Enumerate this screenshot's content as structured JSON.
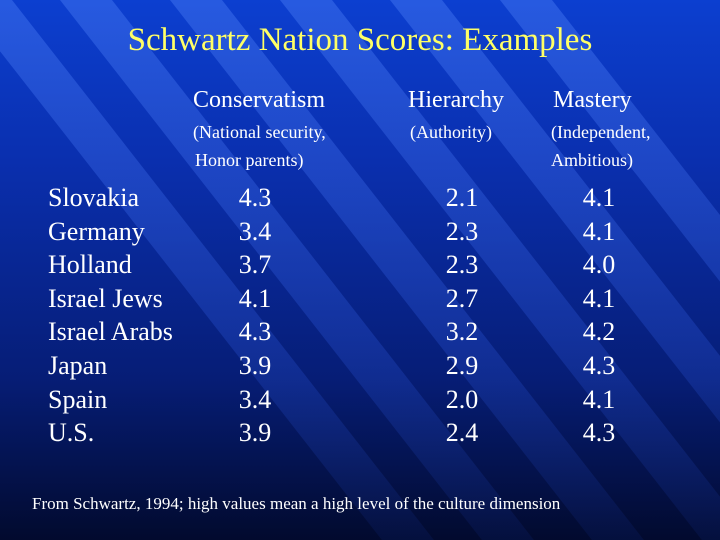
{
  "title": "Schwartz Nation Scores: Examples",
  "columns": [
    {
      "heading": "Conservatism",
      "subtitle_line1": "(National security,",
      "subtitle_line2": "Honor parents)"
    },
    {
      "heading": "Hierarchy",
      "subtitle_line1": "(Authority)",
      "subtitle_line2": ""
    },
    {
      "heading": "Mastery",
      "subtitle_line1": "(Independent,",
      "subtitle_line2": "Ambitious)"
    }
  ],
  "rows": [
    {
      "country": "Slovakia",
      "conservatism": "4.3",
      "hierarchy": "2.1",
      "mastery": "4.1"
    },
    {
      "country": "Germany",
      "conservatism": "3.4",
      "hierarchy": "2.3",
      "mastery": "4.1"
    },
    {
      "country": "Holland",
      "conservatism": "3.7",
      "hierarchy": "2.3",
      "mastery": "4.0"
    },
    {
      "country": "Israel Jews",
      "conservatism": "4.1",
      "hierarchy": "2.7",
      "mastery": "4.1"
    },
    {
      "country": "Israel Arabs",
      "conservatism": "4.3",
      "hierarchy": "3.2",
      "mastery": "4.2"
    },
    {
      "country": "Japan",
      "conservatism": "3.9",
      "hierarchy": "2.9",
      "mastery": "4.3"
    },
    {
      "country": "Spain",
      "conservatism": "3.4",
      "hierarchy": "2.0",
      "mastery": "4.1"
    },
    {
      "country": "U.S.",
      "conservatism": "3.9",
      "hierarchy": "2.4",
      "mastery": "4.3"
    }
  ],
  "footnote": "From Schwartz, 1994; high values mean a high level of the culture dimension",
  "colors": {
    "title": "#ffff66",
    "text": "#ffffff",
    "background": "#0a2fae"
  }
}
